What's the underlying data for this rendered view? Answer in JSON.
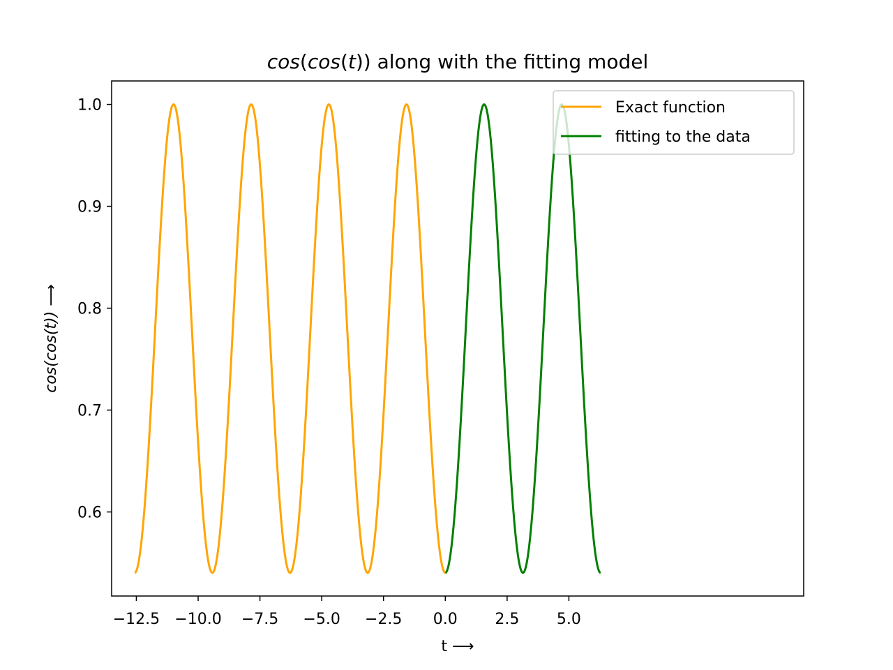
{
  "chart_data": {
    "type": "line",
    "title": "cos(cos(t)) along with the fitting model",
    "title_parts": {
      "f_outer": "cos",
      "paren_open": "(",
      "f_inner": "cos",
      "arg": "(",
      "var": "t",
      "close": "))",
      "rest": " along with the fitting model"
    },
    "xlabel": "t ⟶",
    "ylabel": "cos(cos(t)) ⟶",
    "xlim": [
      -13.5,
      14.5
    ],
    "ylim": [
      0.5175,
      1.023
    ],
    "xticks": [
      -12.5,
      -10.0,
      -7.5,
      -5.0,
      -2.5,
      0.0,
      2.5,
      5.0
    ],
    "xtick_labels": [
      "−12.5",
      "−10.0",
      "−7.5",
      "−5.0",
      "−2.5",
      "0.0",
      "2.5",
      "5.0"
    ],
    "yticks": [
      0.6,
      0.7,
      0.8,
      0.9,
      1.0
    ],
    "ytick_labels": [
      "0.6",
      "0.7",
      "0.8",
      "0.9",
      "1.0"
    ],
    "grid": false,
    "legend_position": "top-right",
    "series": [
      {
        "name": "Exact function",
        "color": "#ffa500",
        "function": "cos(cos(t))",
        "x_range": [
          -12.566,
          0.0
        ],
        "points": 600
      },
      {
        "name": "fitting to the data",
        "color": "#008000",
        "function": "cos(cos(t))",
        "x_range": [
          0.0,
          6.283
        ],
        "points": 400
      }
    ]
  }
}
